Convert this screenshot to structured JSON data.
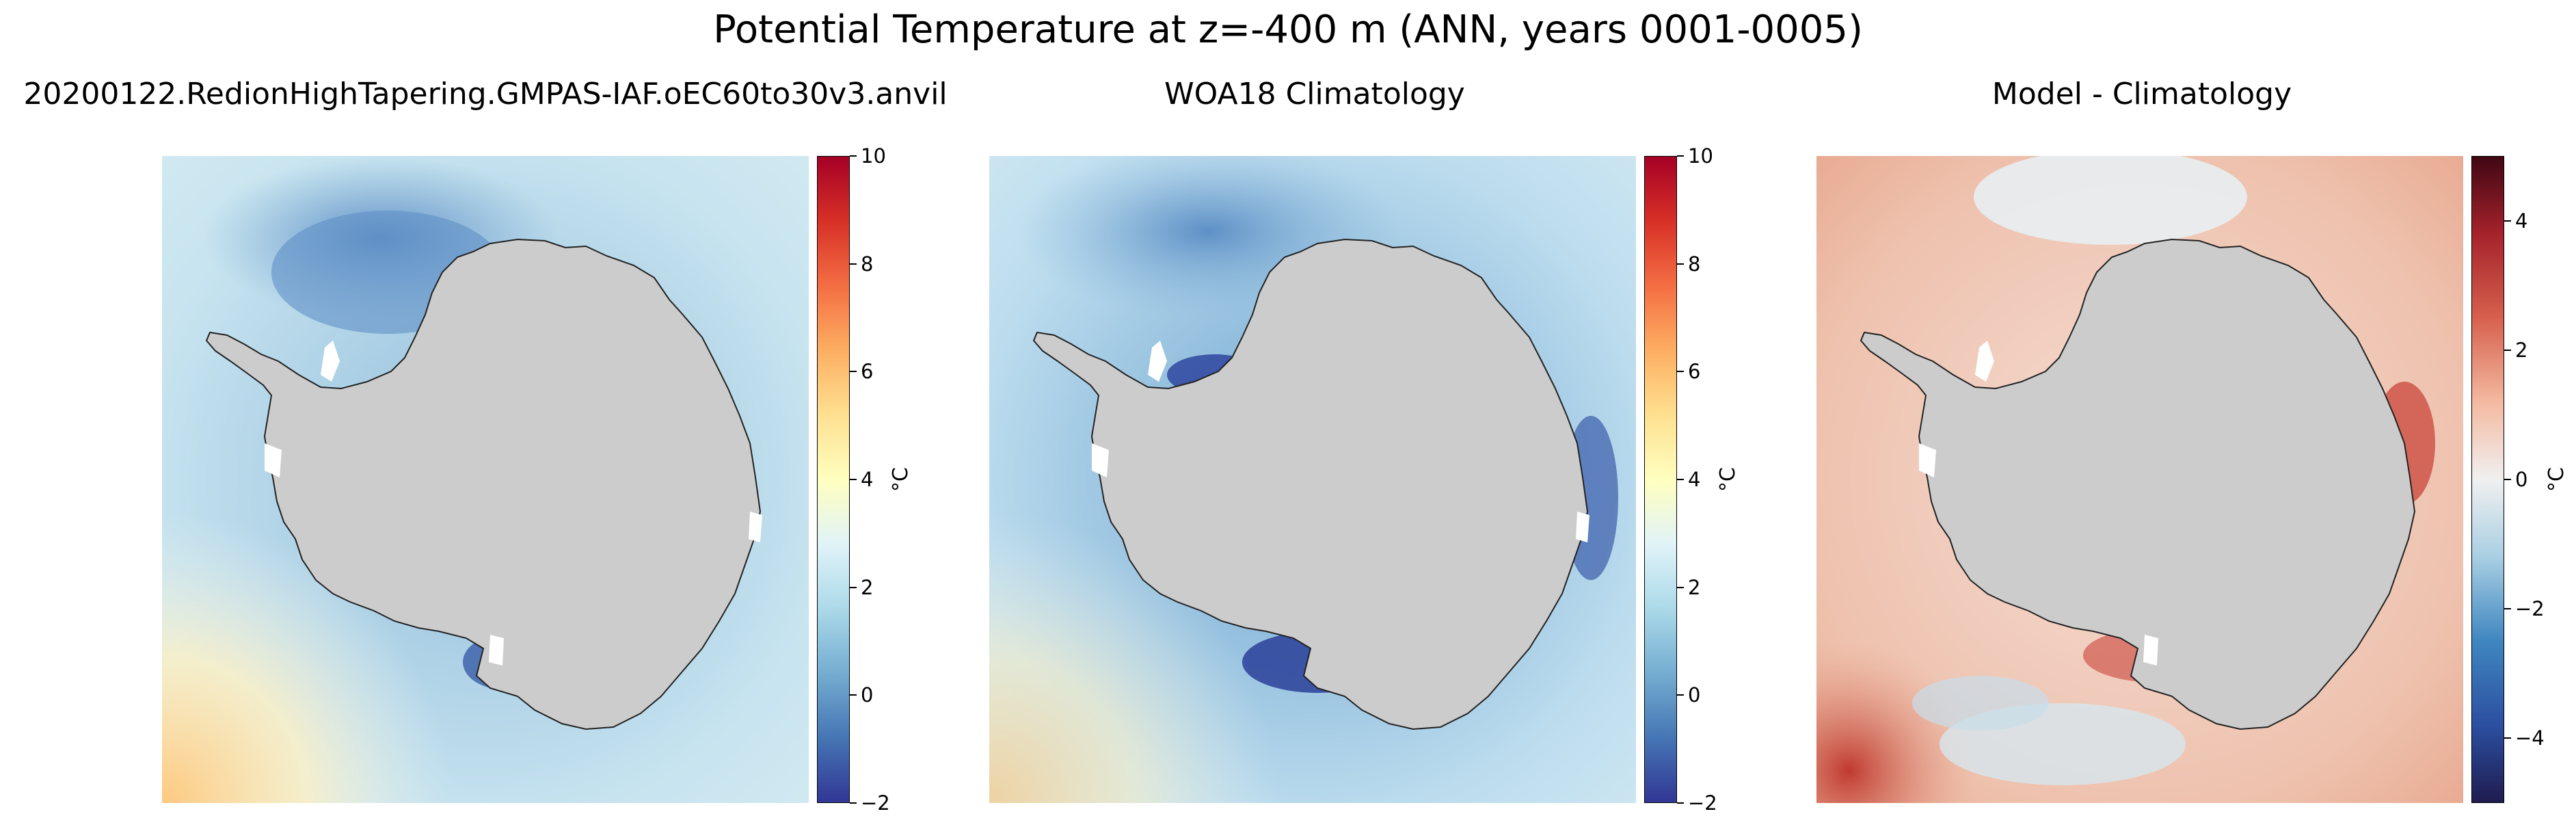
{
  "figure": {
    "title": "Potential Temperature at z=-400 m (ANN, years 0001-0005)"
  },
  "chart_data": [
    {
      "type": "heatmap",
      "title": "20200122.RedionHighTapering.GMPAS-IAF.oEC60to30v3.anvil",
      "colormap": "RdYlBu_r",
      "land_color": "#cccccc",
      "colorbar": {
        "label": "°C",
        "range": [
          -2,
          10
        ],
        "ticks": [
          -2,
          0,
          2,
          4,
          6,
          8,
          10
        ]
      }
    },
    {
      "type": "heatmap",
      "title": "WOA18 Climatology",
      "colormap": "RdYlBu_r",
      "land_color": "#cccccc",
      "colorbar": {
        "label": "°C",
        "range": [
          -2,
          10
        ],
        "ticks": [
          -2,
          0,
          2,
          4,
          6,
          8,
          10
        ]
      }
    },
    {
      "type": "heatmap",
      "title": "Model - Climatology",
      "colormap": "RdBu_r",
      "land_color": "#cccccc",
      "colorbar": {
        "label": "°C",
        "range": [
          -5,
          5
        ],
        "ticks": [
          -4,
          -2,
          0,
          2,
          4
        ]
      }
    }
  ]
}
